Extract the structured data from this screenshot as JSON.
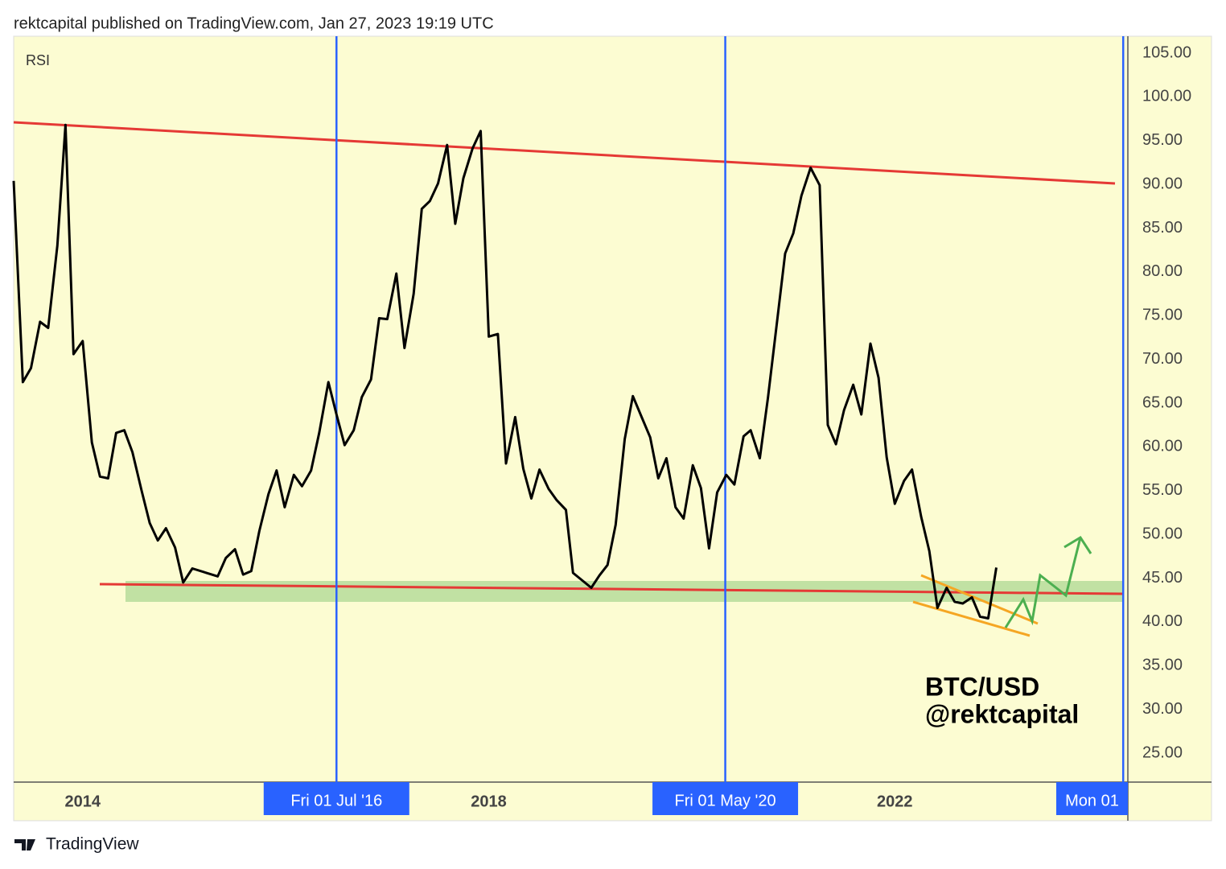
{
  "header": "rektcapital published on TradingView.com, Jan 27, 2023 19:19 UTC",
  "footer": "TradingView",
  "chart_data": {
    "type": "line",
    "annotations": [
      "BTC/USD",
      "@rektcapital"
    ],
    "x": [
      2013.32,
      2013.41,
      2013.49,
      2013.58,
      2013.66,
      2013.75,
      2013.83,
      2013.91,
      2014.0,
      2014.09,
      2014.17,
      2014.25,
      2014.33,
      2014.41,
      2014.49,
      2014.58,
      2014.66,
      2014.74,
      2014.82,
      2014.91,
      2014.99,
      2015.08,
      2015.33,
      2015.41,
      2015.5,
      2015.58,
      2015.66,
      2015.74,
      2015.83,
      2015.91,
      2015.99,
      2016.08,
      2016.16,
      2016.25,
      2016.33,
      2016.42,
      2016.5,
      2016.58,
      2016.67,
      2016.75,
      2016.84,
      2016.92,
      2017.0,
      2017.09,
      2017.17,
      2017.26,
      2017.34,
      2017.42,
      2017.5,
      2017.59,
      2017.67,
      2017.75,
      2017.84,
      2017.92,
      2018.0,
      2018.09,
      2018.17,
      2018.26,
      2018.34,
      2018.42,
      2018.5,
      2018.59,
      2018.67,
      2018.76,
      2018.83,
      2019.01,
      2019.09,
      2019.17,
      2019.25,
      2019.34,
      2019.42,
      2019.51,
      2019.59,
      2019.67,
      2019.75,
      2019.84,
      2019.92,
      2020.01,
      2020.09,
      2020.17,
      2020.25,
      2020.34,
      2020.42,
      2020.51,
      2020.58,
      2020.67,
      2020.75,
      2020.84,
      2020.92,
      2021.0,
      2021.08,
      2021.17,
      2021.26,
      2021.34,
      2021.42,
      2021.5,
      2021.59,
      2021.67,
      2021.76,
      2021.84,
      2021.92,
      2022.0,
      2022.09,
      2022.17,
      2022.26,
      2022.34,
      2022.42,
      2022.51,
      2022.59,
      2022.67,
      2022.76,
      2022.84,
      2022.92,
      2023.0
    ],
    "series": [
      {
        "name": "RSI",
        "color": "#000000",
        "values": [
          90.4,
          67.4,
          69.0,
          74.3,
          73.6,
          83.0,
          96.8,
          70.6,
          72.1,
          60.5,
          56.6,
          56.4,
          61.6,
          61.9,
          59.4,
          55.0,
          51.3,
          49.3,
          50.7,
          48.5,
          44.5,
          46.1,
          45.2,
          47.3,
          48.3,
          45.4,
          45.8,
          50.4,
          54.6,
          57.3,
          53.1,
          56.8,
          55.5,
          57.3,
          61.6,
          67.4,
          63.7,
          60.2,
          61.9,
          65.7,
          67.7,
          74.7,
          74.6,
          79.8,
          71.3,
          77.5,
          87.2,
          88.1,
          90.1,
          94.5,
          85.5,
          90.7,
          94.1,
          96.1,
          72.6,
          72.9,
          58.1,
          63.4,
          57.5,
          54.1,
          57.4,
          55.2,
          53.9,
          52.8,
          45.6,
          43.9,
          45.3,
          46.5,
          51.1,
          60.9,
          65.8,
          63.3,
          61.1,
          56.4,
          58.7,
          53.1,
          51.8,
          57.9,
          55.3,
          48.4,
          54.8,
          56.8,
          55.7,
          61.2,
          61.9,
          58.7,
          65.6,
          74.3,
          82.1,
          84.4,
          88.7,
          91.9,
          89.9,
          62.5,
          60.3,
          64.2,
          67.1,
          63.7,
          71.8,
          67.9,
          58.8,
          53.5,
          56.1,
          57.4,
          52.0,
          48.1,
          41.6,
          43.9,
          42.3,
          42.1,
          42.8,
          40.6,
          40.4,
          46.2
        ]
      }
    ],
    "xlim": [
      2013.32,
      2024.28
    ],
    "xticks": [
      2014,
      2018,
      2022
    ],
    "highlight_dates": [
      {
        "value": 2016.5,
        "label": "Fri 01 Jul '16"
      },
      {
        "value": 2020.33,
        "label": "Fri 01 May '20"
      },
      {
        "value": 2024.25,
        "label": "Mon 01"
      }
    ],
    "ylim": [
      21.69,
      106.93
    ],
    "yticks": [
      {
        "value": 105,
        "label": "105.00"
      },
      {
        "value": 100,
        "label": "100.00"
      },
      {
        "value": 95,
        "label": "95.00"
      },
      {
        "value": 90,
        "label": "90.00"
      },
      {
        "value": 85,
        "label": "85.00"
      },
      {
        "value": 80,
        "label": "80.00"
      },
      {
        "value": 75,
        "label": "75.00"
      },
      {
        "value": 70,
        "label": "70.00"
      },
      {
        "value": 65,
        "label": "65.00"
      },
      {
        "value": 60,
        "label": "60.00"
      },
      {
        "value": 55,
        "label": "55.00"
      },
      {
        "value": 50,
        "label": "50.00"
      },
      {
        "value": 45,
        "label": "45.00"
      },
      {
        "value": 40,
        "label": "40.00"
      },
      {
        "value": 35,
        "label": "35.00"
      },
      {
        "value": 30,
        "label": "30.00"
      },
      {
        "value": 25,
        "label": "25.00"
      }
    ],
    "background": "#fcfcd2",
    "highlight_color": "#2962ff"
  }
}
